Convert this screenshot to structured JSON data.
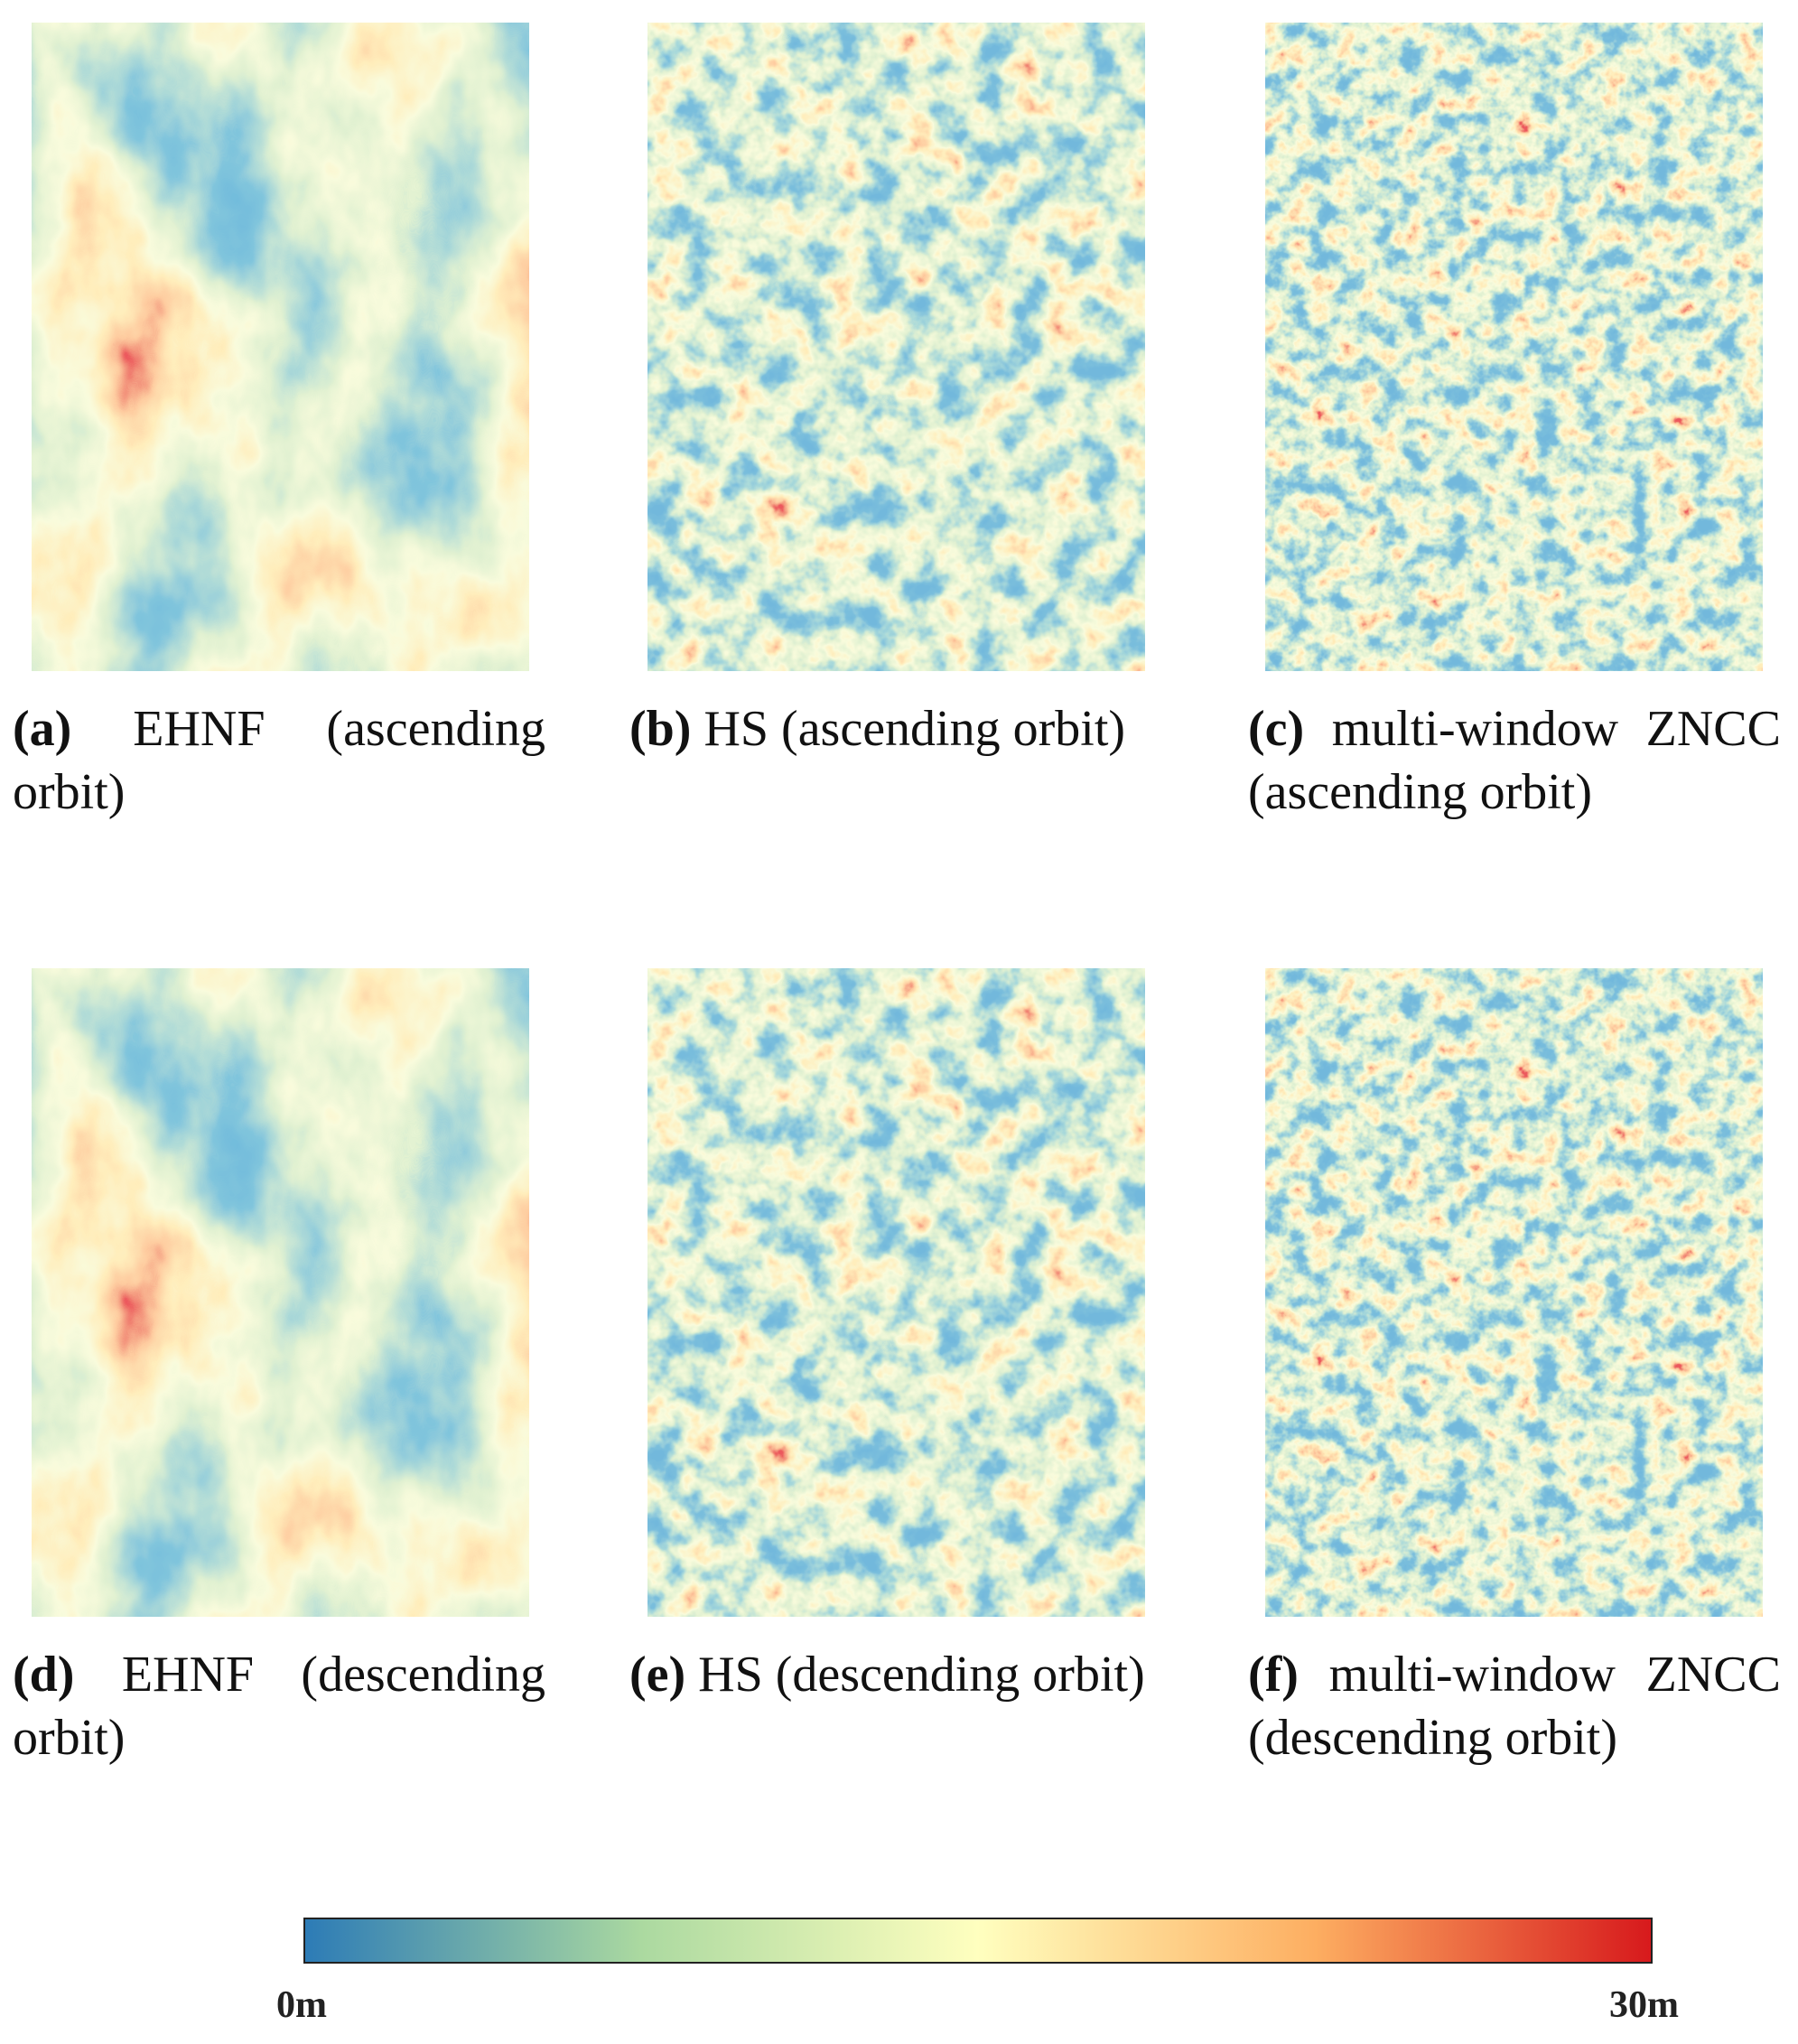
{
  "panels": [
    {
      "label": "(a)",
      "caption": "EHNF (ascending orbit)"
    },
    {
      "label": "(b)",
      "caption": "HS (ascending orbit)"
    },
    {
      "label": "(c)",
      "caption": "multi-window ZNCC (ascending orbit)"
    },
    {
      "label": "(d)",
      "caption": "EHNF (descending orbit)"
    },
    {
      "label": "(e)",
      "caption": "HS (descending orbit)"
    },
    {
      "label": "(f)",
      "caption": "multi-window ZNCC (descending orbit)"
    }
  ],
  "colorbar": {
    "min_label": "0m",
    "max_label": "30m"
  }
}
